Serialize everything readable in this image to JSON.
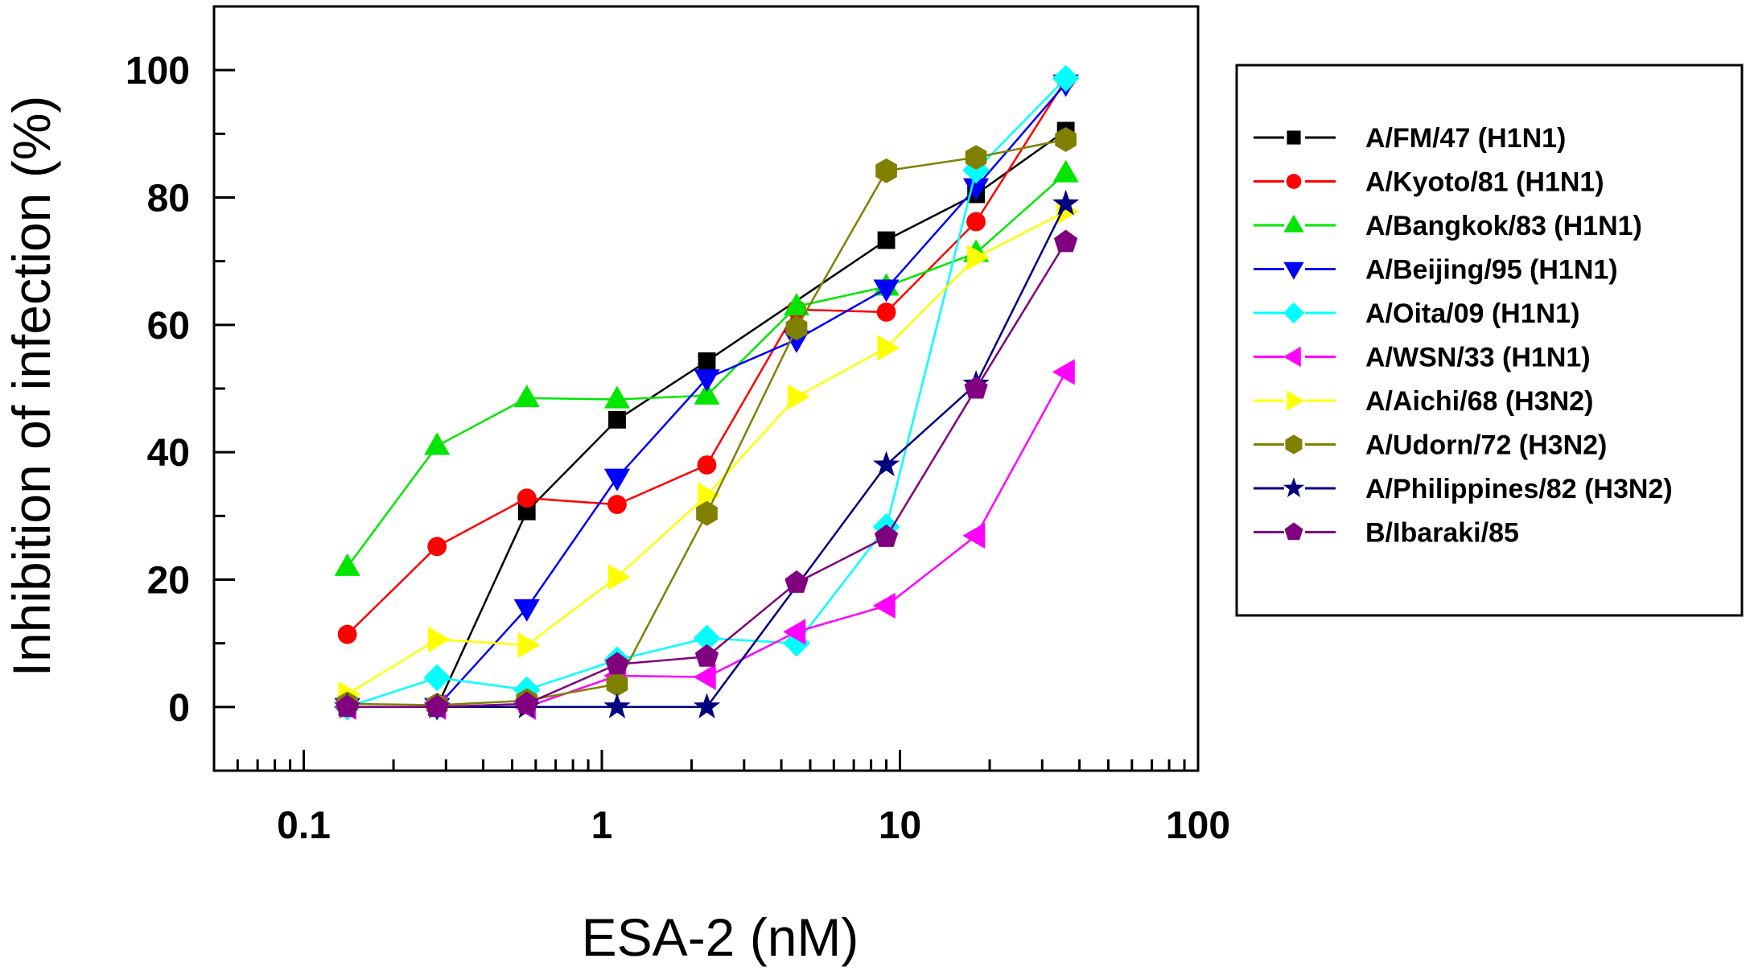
{
  "chart_data": {
    "type": "line",
    "xscale": "log",
    "xlabel": "ESA-2 (nM)",
    "ylabel": "Inhibition of infection (%)",
    "xlim": [
      0.05,
      100
    ],
    "ylim": [
      -10,
      110
    ],
    "xticks": [
      0.1,
      1,
      10,
      100
    ],
    "xtick_labels": [
      "0.1",
      "1",
      "10",
      "100"
    ],
    "yticks": [
      0,
      20,
      40,
      60,
      80,
      100
    ],
    "ytick_labels": [
      "0",
      "20",
      "40",
      "60",
      "80",
      "100"
    ],
    "x": [
      0.14,
      0.28,
      0.56,
      1.125,
      2.25,
      4.5,
      9,
      18,
      36
    ],
    "legend_position": "right-outside",
    "series": [
      {
        "name": "A/FM/47 (H1N1)",
        "color": "#000000",
        "marker": "square",
        "values": [
          0,
          0,
          30.7,
          45.1,
          54.3,
          null,
          73.3,
          80.5,
          90.5
        ]
      },
      {
        "name": "A/Kyoto/81 (H1N1)",
        "color": "#ff0000",
        "marker": "circle",
        "values": [
          11.4,
          25.2,
          32.8,
          31.8,
          38,
          62.4,
          62,
          76.2,
          98.5
        ]
      },
      {
        "name": "A/Bangkok/83 (H1N1)",
        "color": "#00e600",
        "marker": "triangle-up",
        "values": [
          22,
          41,
          48.5,
          48.3,
          48.9,
          62.9,
          66,
          71.3,
          83.8
        ]
      },
      {
        "name": "A/Beijing/95 (H1N1)",
        "color": "#0000ff",
        "marker": "triangle-down",
        "values": [
          0,
          0,
          15.5,
          36,
          51.6,
          57.7,
          65.7,
          81.6,
          97.9
        ]
      },
      {
        "name": "A/Oita/09 (H1N1)",
        "color": "#00ffff",
        "marker": "diamond",
        "values": [
          0,
          4.6,
          2.7,
          7.4,
          10.8,
          10,
          28.3,
          84.3,
          98.7
        ]
      },
      {
        "name": "A/WSN/33 (H1N1)",
        "color": "#ff00ff",
        "marker": "triangle-left",
        "values": [
          0,
          0,
          0,
          4.9,
          4.7,
          11.8,
          15.9,
          26.9,
          52.6
        ]
      },
      {
        "name": "A/Aichi/68 (H3N2)",
        "color": "#ffff00",
        "marker": "triangle-right",
        "values": [
          2,
          10.6,
          9.7,
          20.4,
          33.2,
          48.7,
          56.4,
          70.6,
          77.8
        ]
      },
      {
        "name": "A/Udorn/72 (H3N2)",
        "color": "#808000",
        "marker": "hexagon",
        "values": [
          0.5,
          0.3,
          1,
          3.6,
          30.4,
          59.5,
          84.2,
          86.3,
          89.1
        ]
      },
      {
        "name": "A/Philippines/82 (H3N2)",
        "color": "#000080",
        "marker": "star",
        "values": [
          0,
          0,
          0,
          0,
          0,
          null,
          38,
          50.7,
          79
        ]
      },
      {
        "name": "B/Ibaraki/85",
        "color": "#800080",
        "marker": "pentagon",
        "values": [
          0,
          0,
          0.5,
          6.7,
          7.9,
          19.5,
          26.7,
          50,
          73
        ]
      }
    ]
  }
}
